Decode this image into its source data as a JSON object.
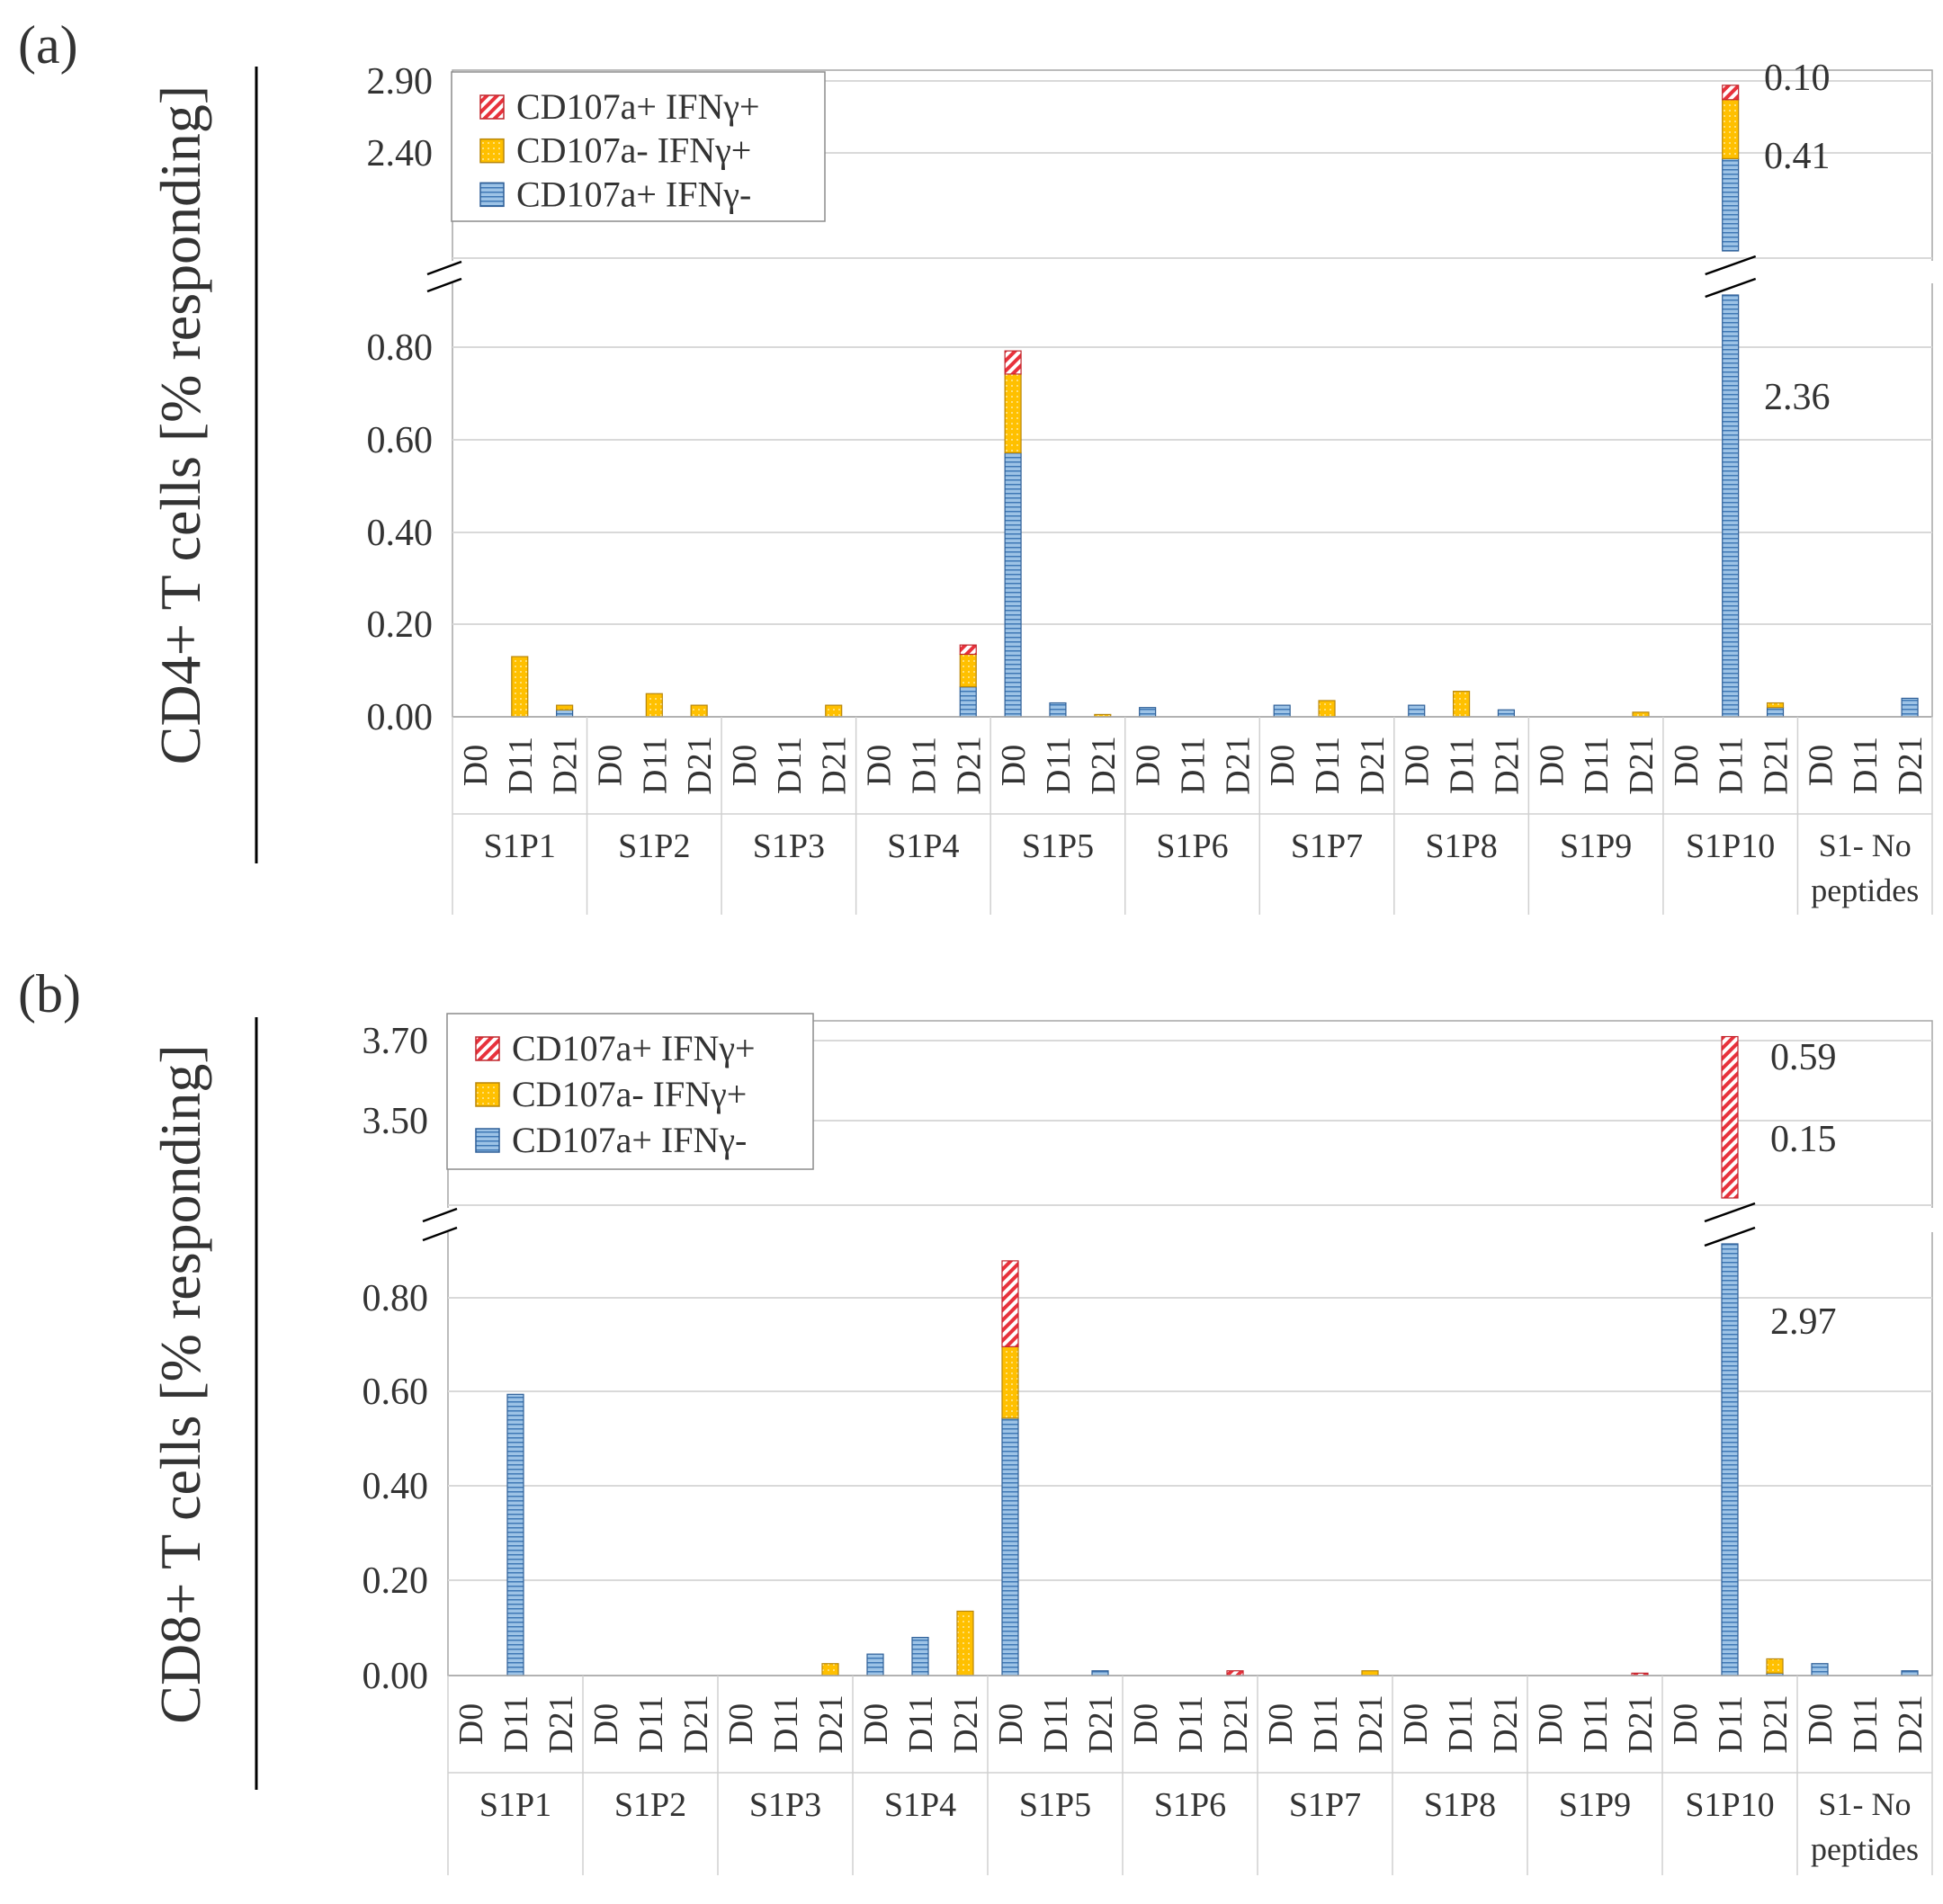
{
  "colors": {
    "both": "#e8323c",
    "ifng_only": "#ffc000",
    "cd107a_only": "#9dc3e6",
    "grid": "#d9d9d9",
    "axis": "#8c8c8c"
  },
  "chart_data": [
    {
      "type": "bar",
      "stacked": true,
      "broken_axis": true,
      "panel_label": "(a)",
      "ylabel": "CD4+ T cells  [% responding]",
      "lower_ylim": [
        0,
        0.9
      ],
      "lower_ticks": [
        "0.00",
        "0.20",
        "0.40",
        "0.60",
        "0.80"
      ],
      "upper_ticks": [
        "2.40",
        "2.90"
      ],
      "groups": [
        "S1P1",
        "S1P2",
        "S1P3",
        "S1P4",
        "S1P5",
        "S1P6",
        "S1P7",
        "S1P8",
        "S1P9",
        "S1P10",
        "S1- No peptides"
      ],
      "days": [
        "D0",
        "D11",
        "D21"
      ],
      "legend": [
        "CD107a+ IFNγ+",
        "CD107a- IFNγ+",
        "CD107a+ IFNγ-"
      ],
      "series": [
        {
          "name": "CD107a+ IFNγ-",
          "key": "cd107a_only",
          "values": [
            0,
            0,
            0.015,
            0,
            0,
            0,
            0,
            0,
            0,
            0,
            0,
            0.065,
            0.57,
            0.03,
            0,
            0.02,
            0,
            0,
            0.025,
            0,
            0,
            0.025,
            0,
            0.015,
            0,
            0,
            0,
            0,
            2.36,
            0.02,
            0,
            0,
            0.04
          ]
        },
        {
          "name": "CD107a- IFNγ+",
          "key": "ifng_only",
          "values": [
            0,
            0.13,
            0.01,
            0,
            0.05,
            0.025,
            0,
            0,
            0.025,
            0,
            0,
            0.07,
            0.17,
            0,
            0.005,
            0,
            0,
            0,
            0,
            0.035,
            0,
            0,
            0.055,
            0,
            0,
            0,
            0.01,
            0,
            0.41,
            0.01,
            0,
            0,
            0
          ]
        },
        {
          "name": "CD107a+ IFNγ+",
          "key": "both",
          "values": [
            0,
            0,
            0,
            0,
            0,
            0,
            0,
            0,
            0,
            0,
            0,
            0.02,
            0.05,
            0,
            0,
            0,
            0,
            0,
            0,
            0,
            0,
            0,
            0,
            0,
            0,
            0,
            0,
            0,
            0.1,
            0,
            0,
            0,
            0
          ]
        }
      ],
      "annotations": [
        "0.10",
        "0.41",
        "2.36"
      ]
    },
    {
      "type": "bar",
      "stacked": true,
      "broken_axis": true,
      "panel_label": "(b)",
      "ylabel": "CD8+ T cells  [% responding]",
      "lower_ylim": [
        0,
        0.9
      ],
      "lower_ticks": [
        "0.00",
        "0.20",
        "0.40",
        "0.60",
        "0.80"
      ],
      "upper_ticks": [
        "3.50",
        "3.70"
      ],
      "groups": [
        "S1P1",
        "S1P2",
        "S1P3",
        "S1P4",
        "S1P5",
        "S1P6",
        "S1P7",
        "S1P8",
        "S1P9",
        "S1P10",
        "S1- No peptides"
      ],
      "days": [
        "D0",
        "D11",
        "D21"
      ],
      "legend": [
        "CD107a+ IFNγ+",
        "CD107a- IFNγ+",
        "CD107a+ IFNγ-"
      ],
      "series": [
        {
          "name": "CD107a+ IFNγ-",
          "key": "cd107a_only",
          "values": [
            0,
            0.59,
            0,
            0,
            0,
            0,
            0,
            0,
            0,
            0.045,
            0.08,
            0,
            0.54,
            0,
            0.01,
            0,
            0,
            0,
            0,
            0,
            0,
            0,
            0,
            0,
            0,
            0,
            0,
            0,
            2.97,
            0.005,
            0.025,
            0,
            0.01
          ]
        },
        {
          "name": "CD107a- IFNγ+",
          "key": "ifng_only",
          "values": [
            0,
            0,
            0,
            0,
            0,
            0,
            0,
            0,
            0.025,
            0,
            0,
            0.135,
            0.15,
            0,
            0,
            0,
            0,
            0,
            0,
            0,
            0.01,
            0,
            0,
            0,
            0,
            0,
            0,
            0,
            0.15,
            0.03,
            0,
            0,
            0
          ]
        },
        {
          "name": "CD107a+ IFNγ+",
          "key": "both",
          "values": [
            0,
            0,
            0,
            0,
            0,
            0,
            0,
            0,
            0,
            0,
            0,
            0,
            0.18,
            0,
            0,
            0,
            0,
            0.01,
            0,
            0,
            0,
            0,
            0,
            0,
            0,
            0,
            0.005,
            0,
            0.59,
            0,
            0,
            0,
            0
          ]
        }
      ],
      "annotations": [
        "0.59",
        "0.15",
        "2.97"
      ]
    }
  ]
}
